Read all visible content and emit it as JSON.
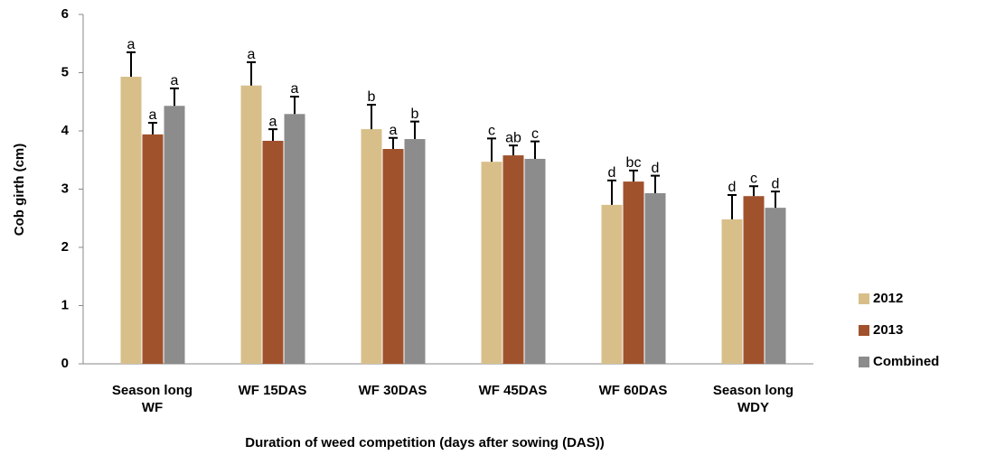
{
  "chart_data": {
    "type": "bar",
    "y_label": "Cob girth (cm)",
    "x_label": "Duration  of weed competition (days after sowing (DAS))",
    "categories": [
      "Season long WF",
      "WF 15DAS",
      "WF 30DAS",
      "WF 45DAS",
      "WF 60DAS",
      "Season long WDY"
    ],
    "series": [
      {
        "name": "2012",
        "color": "#d8bf8a",
        "values": [
          4.93,
          4.78,
          4.03,
          3.47,
          2.73,
          2.48
        ],
        "errors": [
          0.42,
          0.4,
          0.42,
          0.4,
          0.42,
          0.42
        ],
        "labels": [
          "a",
          "a",
          "b",
          "c",
          "d",
          "d"
        ]
      },
      {
        "name": "2013",
        "color": "#a0522d",
        "values": [
          3.94,
          3.83,
          3.69,
          3.58,
          3.13,
          2.88
        ],
        "errors": [
          0.2,
          0.2,
          0.19,
          0.17,
          0.19,
          0.17
        ],
        "labels": [
          "a",
          "a",
          "a",
          "ab",
          "bc",
          "c"
        ]
      },
      {
        "name": "Combined",
        "color": "#8c8c8c",
        "values": [
          4.43,
          4.29,
          3.86,
          3.52,
          2.93,
          2.68
        ],
        "errors": [
          0.3,
          0.3,
          0.3,
          0.3,
          0.3,
          0.28
        ],
        "labels": [
          "a",
          "a",
          "b",
          "c",
          "d",
          "d"
        ]
      }
    ],
    "ylim": [
      0,
      6
    ],
    "yticks": [
      0,
      1,
      2,
      3,
      4,
      5,
      6
    ],
    "legend": "right"
  }
}
